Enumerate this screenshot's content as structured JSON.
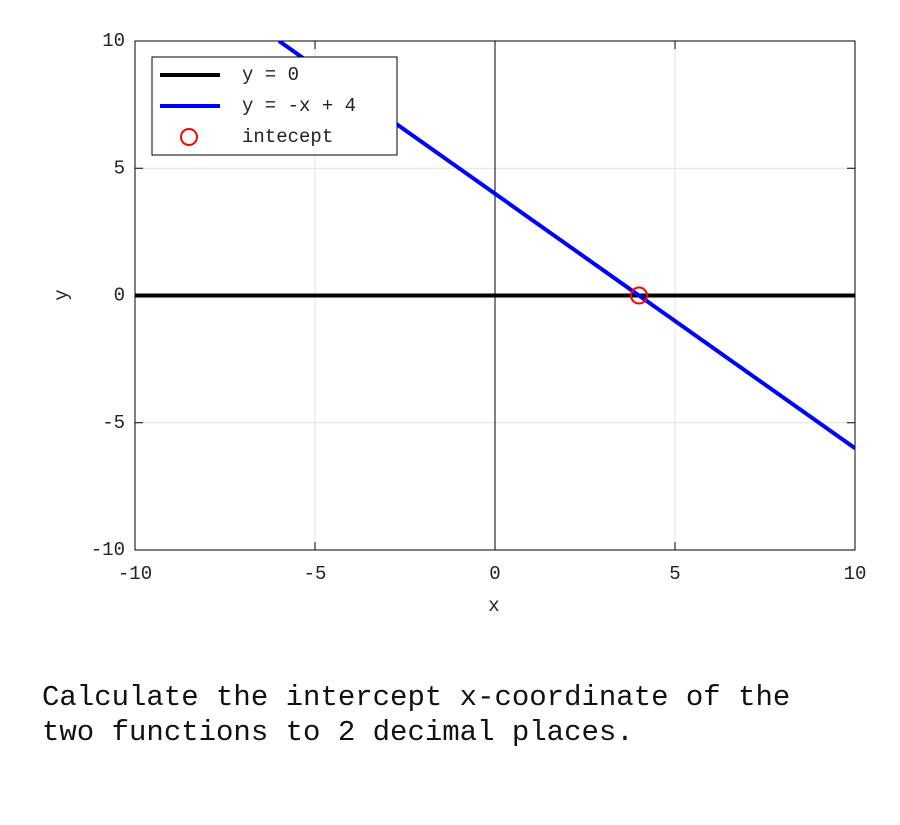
{
  "chart_data": {
    "type": "line",
    "xlabel": "x",
    "ylabel": "y",
    "xlim": [
      -10,
      10
    ],
    "ylim": [
      -10,
      10
    ],
    "xticks": [
      -10,
      -5,
      0,
      5,
      10
    ],
    "yticks": [
      -10,
      -5,
      0,
      5,
      10
    ],
    "grid": true,
    "zero_axes": true,
    "legend": "upper left",
    "series": [
      {
        "name": "y = 0",
        "color": "#000000",
        "x": [
          -10,
          10
        ],
        "values": [
          0,
          0
        ]
      },
      {
        "name": "y = -x + 4",
        "color": "#0000ff",
        "x": [
          -6,
          10
        ],
        "values": [
          10,
          -6
        ]
      },
      {
        "name": "intecept",
        "color": "#ff0000",
        "marker": "circle",
        "x": [
          4
        ],
        "values": [
          0
        ]
      }
    ]
  },
  "question": "Calculate the intercept x-coordinate of the two functions to 2 decimal places."
}
